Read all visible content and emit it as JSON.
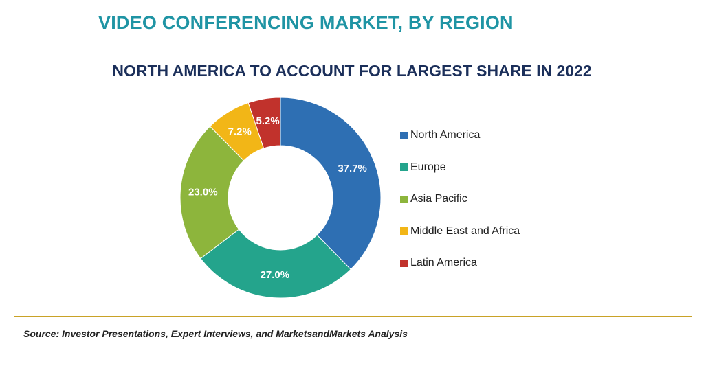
{
  "title": "VIDEO CONFERENCING MARKET, BY REGION",
  "subtitle": "NORTH AMERICA TO ACCOUNT FOR LARGEST SHARE IN 2022",
  "source": "Source: Investor Presentations, Expert Interviews, and MarketsandMarkets Analysis",
  "chart_data": {
    "type": "pie",
    "style": "donut",
    "title": "VIDEO CONFERENCING MARKET, BY REGION",
    "subtitle": "NORTH AMERICA TO ACCOUNT FOR LARGEST SHARE IN 2022",
    "unit": "%",
    "legend_position": "right",
    "slices": [
      {
        "name": "North America",
        "value": 37.7,
        "label": "37.7%",
        "color": "#2e6fb3"
      },
      {
        "name": "Europe",
        "value": 27.0,
        "label": "27.0%",
        "color": "#24a48c"
      },
      {
        "name": "Asia Pacific",
        "value": 23.0,
        "label": "23.0%",
        "color": "#8db53c"
      },
      {
        "name": "Middle East and Africa",
        "value": 7.2,
        "label": "7.2%",
        "color": "#f2b617"
      },
      {
        "name": "Latin America",
        "value": 5.2,
        "label": "5.2%",
        "color": "#c1322c"
      }
    ]
  },
  "colors": {
    "title": "#1f94a4",
    "subtitle": "#1b2f5a",
    "rule": "#c9a227"
  }
}
